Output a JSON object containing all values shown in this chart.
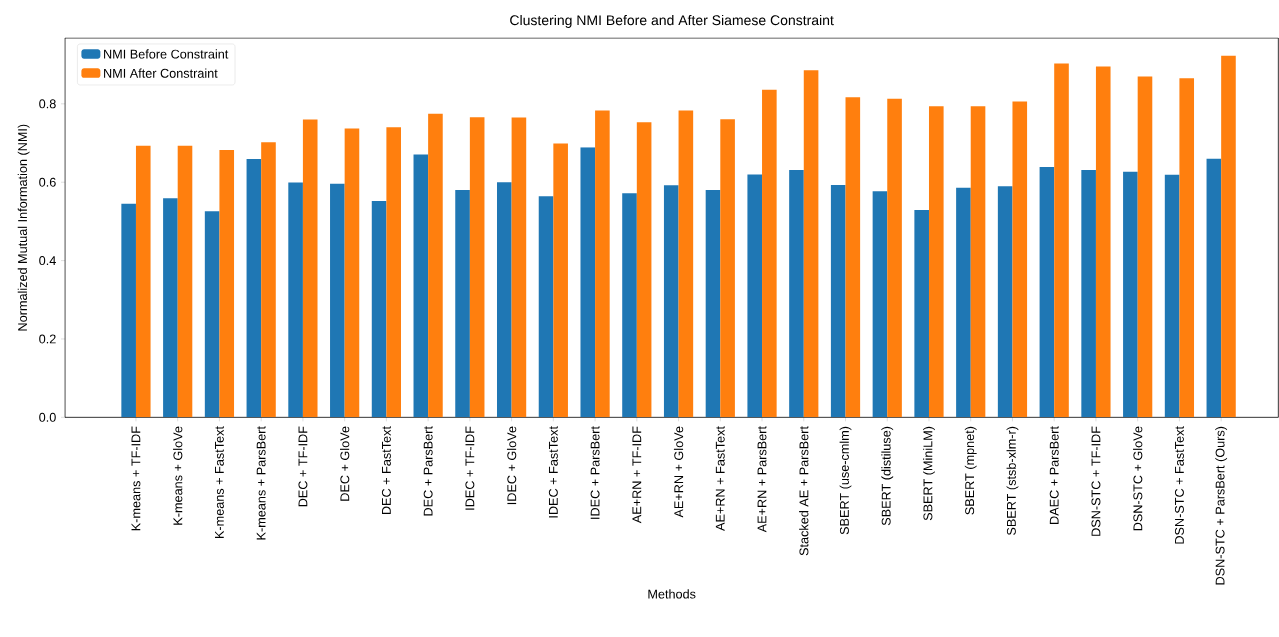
{
  "chart_data": {
    "type": "bar",
    "title": "Clustering NMI Before and After Siamese Constraint",
    "xlabel": "Methods",
    "ylabel": "Normalized Mutual Information (NMI)",
    "categories": [
      "K-means + TF-IDF",
      "K-means + GloVe",
      "K-means + FastText",
      "K-means + ParsBert",
      "DEC + TF-IDF",
      "DEC + GloVe",
      "DEC + FastText",
      "DEC + ParsBert",
      "IDEC + TF-IDF",
      "IDEC + GloVe",
      "IDEC + FastText",
      "IDEC + ParsBert",
      "AE+RN + TF-IDF",
      "AE+RN + GloVe",
      "AE+RN + FastText",
      "AE+RN + ParsBert",
      "Stacked AE + ParsBert",
      "SBERT (use-cmlm)",
      "SBERT (distiluse)",
      "SBERT (MiniLM)",
      "SBERT (mpnet)",
      "SBERT (stsb-xlm-r)",
      "DAEC + ParsBert",
      "DSN-STC + TF-IDF",
      "DSN-STC + GloVe",
      "DSN-STC + FastText",
      "DSN-STC + ParsBert (Ours)"
    ],
    "series": [
      {
        "name": "NMI Before Constraint",
        "color": "#1f77b4",
        "values": [
          0.545,
          0.559,
          0.526,
          0.659,
          0.599,
          0.596,
          0.552,
          0.671,
          0.58,
          0.6,
          0.564,
          0.689,
          0.572,
          0.592,
          0.58,
          0.62,
          0.631,
          0.593,
          0.577,
          0.529,
          0.586,
          0.59,
          0.639,
          0.631,
          0.627,
          0.619,
          0.66
        ]
      },
      {
        "name": "NMI After Constraint",
        "color": "#ff7f0e",
        "values": [
          0.693,
          0.693,
          0.682,
          0.702,
          0.76,
          0.737,
          0.74,
          0.775,
          0.766,
          0.765,
          0.699,
          0.783,
          0.753,
          0.783,
          0.761,
          0.836,
          0.886,
          0.817,
          0.813,
          0.794,
          0.794,
          0.806,
          0.903,
          0.895,
          0.87,
          0.865,
          0.923
        ]
      }
    ],
    "ylim": [
      0,
      0.968
    ],
    "yticks": [
      {
        "value": 0,
        "label": "0.0"
      },
      0.2,
      0.4,
      0.6,
      0.8
    ],
    "grid": false,
    "legend": "top left"
  }
}
